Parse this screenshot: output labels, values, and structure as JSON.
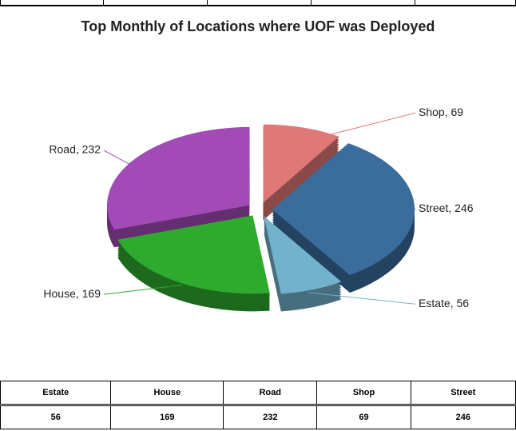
{
  "chart_data": {
    "type": "pie",
    "title": "Top Monthly of Locations where UOF was Deployed",
    "categories": [
      "Estate",
      "House",
      "Road",
      "Shop",
      "Street"
    ],
    "values": [
      56,
      169,
      232,
      69,
      246
    ],
    "value_labels": [
      "Estate, 56",
      "House, 169",
      "Road, 232",
      "Shop, 69",
      "Street, 246"
    ],
    "colors": [
      "#72b2cc",
      "#2eaa2e",
      "#a24ab6",
      "#e07878",
      "#3a6c9c"
    ]
  },
  "table": {
    "header": [
      "Estate",
      "House",
      "Road",
      "Shop",
      "Street"
    ],
    "rows": [
      [
        "56",
        "169",
        "232",
        "69",
        "246"
      ]
    ]
  }
}
